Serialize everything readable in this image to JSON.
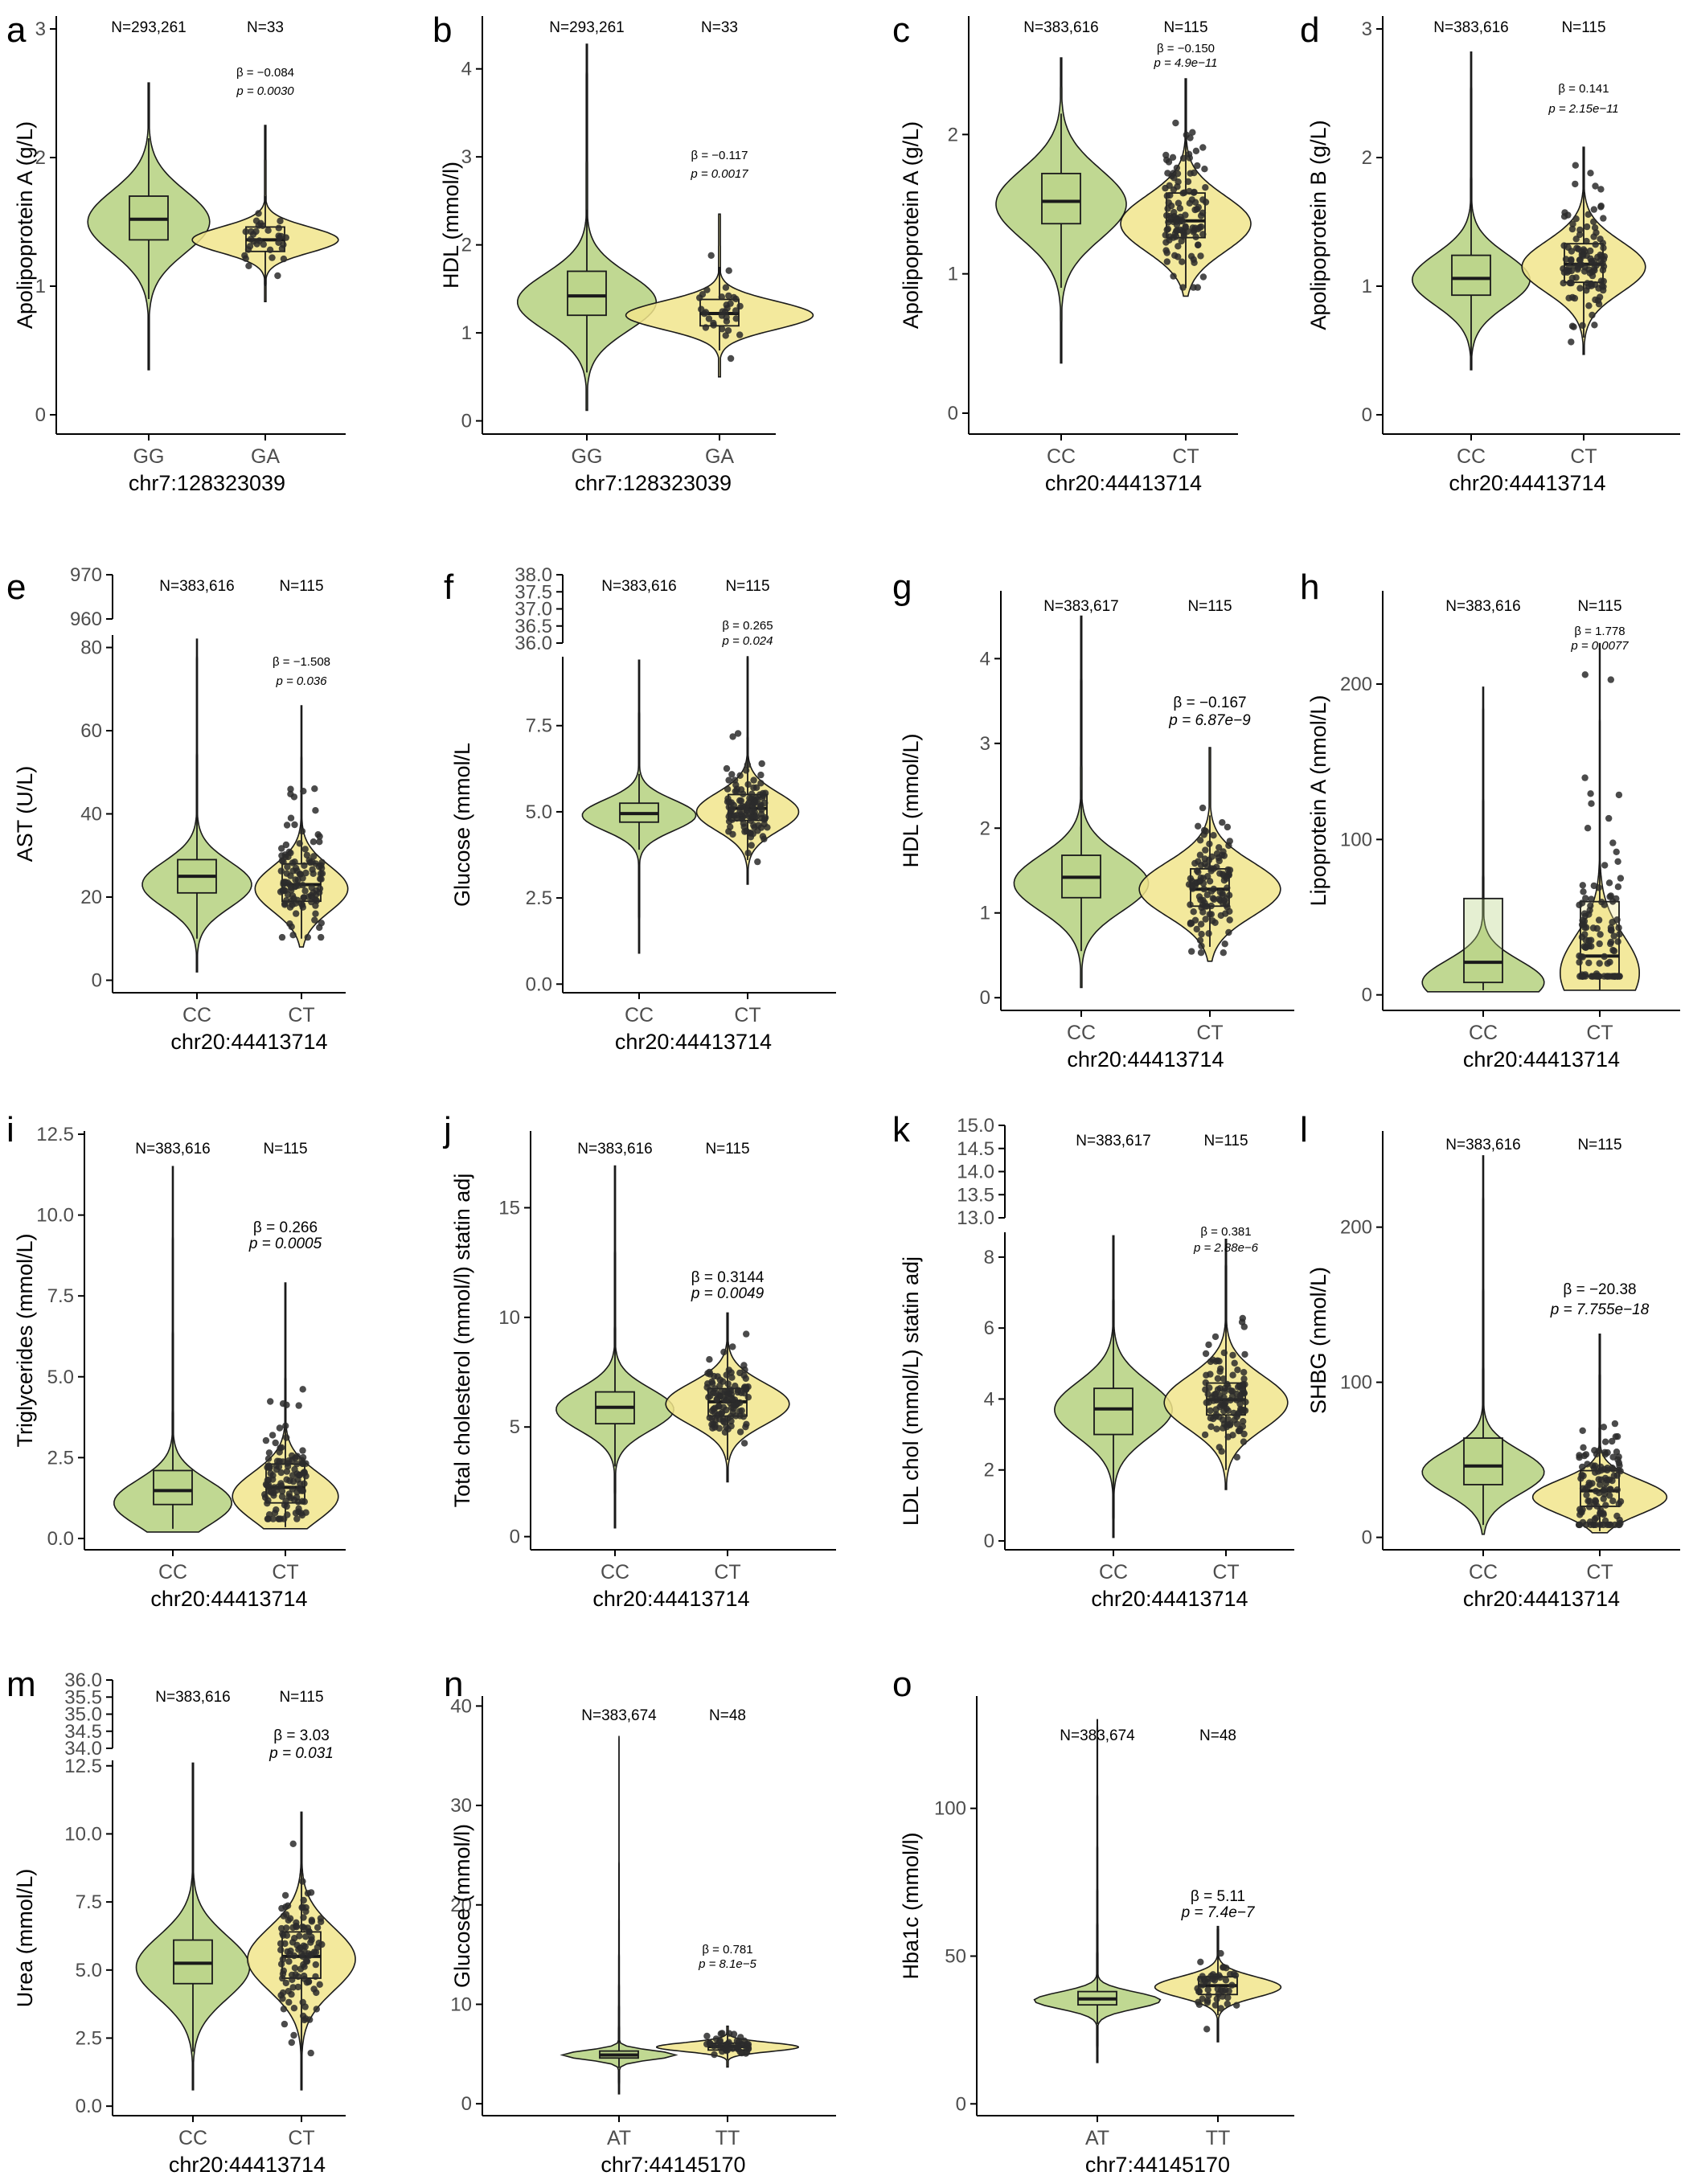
{
  "figure": {
    "colors": {
      "group1": "#b5d17f",
      "group2": "#f1e58c",
      "outline": "#1a1a1a",
      "point": "#2b2b2b",
      "axis": "#000000"
    },
    "violin_fill_opacity": 0.85
  },
  "chart_data": [
    {
      "id": "a",
      "letter": "a",
      "type": "violin",
      "ylabel": "Apolipoprotein A (g/L)",
      "xlabel": "chr7:128323039",
      "ylim": [
        -0.15,
        3.1
      ],
      "yticks": [
        0,
        1,
        2,
        3
      ],
      "ytick_labels": [
        "0",
        "1",
        "2",
        "3"
      ],
      "groups": [
        {
          "name": "GG",
          "n_label": "N=293,261",
          "min": 0.35,
          "max": 2.58,
          "median": 1.52,
          "q1": 1.36,
          "q3": 1.7,
          "whisker_low": 0.9,
          "whisker_high": 2.15,
          "mode": 1.5,
          "spread": 0.24,
          "width": 1.0,
          "points": 0
        },
        {
          "name": "GA",
          "n_label": "N=33",
          "min": 0.88,
          "max": 2.25,
          "median": 1.36,
          "q1": 1.27,
          "q3": 1.46,
          "whisker_low": 1.0,
          "whisker_high": 1.7,
          "mode": 1.36,
          "spread": 0.1,
          "width": 1.2,
          "points": 33
        }
      ],
      "stat": {
        "beta": "β = −0.084",
        "p": "p = 0.0030",
        "size": "small"
      }
    },
    {
      "id": "b",
      "letter": "b",
      "type": "violin",
      "ylabel": "HDL (mmol/l)",
      "xlabel": "chr7:128323039",
      "ylim": [
        -0.15,
        4.6
      ],
      "yticks": [
        0,
        1,
        2,
        3,
        4
      ],
      "ytick_labels": [
        "0",
        "1",
        "2",
        "3",
        "4"
      ],
      "groups": [
        {
          "name": "GG",
          "n_label": "N=293,261",
          "min": 0.12,
          "max": 4.28,
          "median": 1.42,
          "q1": 1.2,
          "q3": 1.7,
          "whisker_low": 0.55,
          "whisker_high": 2.4,
          "mode": 1.35,
          "spread": 0.32,
          "width": 1.0,
          "points": 0
        },
        {
          "name": "GA",
          "n_label": "N=33",
          "min": 0.5,
          "max": 2.35,
          "median": 1.22,
          "q1": 1.08,
          "q3": 1.38,
          "whisker_low": 0.8,
          "whisker_high": 1.75,
          "mode": 1.2,
          "spread": 0.16,
          "width": 1.35,
          "points": 33
        }
      ],
      "stat": {
        "beta": "β = −0.117",
        "p": "p = 0.0017",
        "size": "small"
      }
    },
    {
      "id": "c",
      "letter": "c",
      "type": "violin",
      "ylabel": "Apolipoprotein A (g/L)",
      "xlabel": "chr20:44413714",
      "ylim": [
        -0.15,
        2.85
      ],
      "yticks": [
        0,
        1,
        2
      ],
      "ytick_labels": [
        "0",
        "1",
        "2"
      ],
      "groups": [
        {
          "name": "CC",
          "n_label": "N=383,616",
          "min": 0.36,
          "max": 2.55,
          "median": 1.52,
          "q1": 1.36,
          "q3": 1.72,
          "whisker_low": 0.9,
          "whisker_high": 2.15,
          "mode": 1.5,
          "spread": 0.25,
          "width": 1.0,
          "points": 0
        },
        {
          "name": "CT",
          "n_label": "N=115",
          "min": 0.84,
          "max": 2.4,
          "median": 1.38,
          "q1": 1.26,
          "q3": 1.58,
          "whisker_low": 0.9,
          "whisker_high": 2.05,
          "mode": 1.36,
          "spread": 0.2,
          "width": 1.0,
          "points": 115
        }
      ],
      "stat": {
        "beta": "β = −0.150",
        "p": "p = 4.9e−11",
        "size": "small"
      }
    },
    {
      "id": "d",
      "letter": "d",
      "type": "violin",
      "ylabel": "Apolipoprotein B (g/L)",
      "xlabel": "chr20:44413714",
      "ylim": [
        -0.15,
        3.1
      ],
      "yticks": [
        0,
        1,
        2,
        3
      ],
      "ytick_labels": [
        "0",
        "1",
        "2",
        "3"
      ],
      "groups": [
        {
          "name": "CC",
          "n_label": "N=383,616",
          "min": 0.35,
          "max": 2.82,
          "median": 1.06,
          "q1": 0.93,
          "q3": 1.24,
          "whisker_low": 0.45,
          "whisker_high": 1.7,
          "mode": 1.05,
          "spread": 0.2,
          "width": 1.0,
          "points": 0
        },
        {
          "name": "CT",
          "n_label": "N=115",
          "min": 0.47,
          "max": 2.08,
          "median": 1.17,
          "q1": 1.03,
          "q3": 1.33,
          "whisker_low": 0.6,
          "whisker_high": 1.85,
          "mode": 1.15,
          "spread": 0.2,
          "width": 1.05,
          "points": 115
        }
      ],
      "stat": {
        "beta": "β = 0.141",
        "p": "p = 2.15e−11",
        "size": "small"
      }
    },
    {
      "id": "e",
      "letter": "e",
      "type": "violin",
      "ylabel": "AST (U/L)",
      "xlabel": "chr20:44413714",
      "ylim": [
        -3,
        83
      ],
      "yticks": [
        0,
        20,
        40,
        60,
        80
      ],
      "ytick_labels": [
        "0",
        "20",
        "40",
        "60",
        "80"
      ],
      "broken_axis": {
        "tick_labels": [
          "970",
          "960"
        ]
      },
      "groups": [
        {
          "name": "CC",
          "n_label": "N=383,616",
          "min": 2,
          "max": 82,
          "median": 25,
          "q1": 21,
          "q3": 29,
          "whisker_low": 10,
          "whisker_high": 40,
          "mode": 23,
          "spread": 5.5,
          "width": 1.0,
          "points": 0
        },
        {
          "name": "CT",
          "n_label": "N=115",
          "min": 8,
          "max": 66,
          "median": 23,
          "q1": 19,
          "q3": 28,
          "whisker_low": 10,
          "whisker_high": 44,
          "mode": 22,
          "spread": 5.5,
          "width": 0.85,
          "points": 115
        }
      ],
      "stat": {
        "beta": "β = −1.508",
        "p": "p = 0.036",
        "size": "small"
      }
    },
    {
      "id": "f",
      "letter": "f",
      "type": "violin",
      "ylabel": "Glucose (mmol/L",
      "xlabel": "chr20:44413714",
      "ylim": [
        -0.25,
        9.5
      ],
      "yticks": [
        0,
        2.5,
        5,
        7.5
      ],
      "ytick_labels": [
        "0.0",
        "2.5",
        "5.0",
        "7.5"
      ],
      "broken_axis": {
        "tick_labels": [
          "38.0",
          "37.5",
          "37.0",
          "36.5",
          "36.0"
        ]
      },
      "groups": [
        {
          "name": "CC",
          "n_label": "N=383,616",
          "min": 0.9,
          "max": 9.4,
          "median": 4.95,
          "q1": 4.7,
          "q3": 5.25,
          "whisker_low": 3.9,
          "whisker_high": 6.1,
          "mode": 4.9,
          "spread": 0.45,
          "width": 1.0,
          "points": 0
        },
        {
          "name": "CT",
          "n_label": "N=115",
          "min": 2.9,
          "max": 9.5,
          "median": 5.1,
          "q1": 4.75,
          "q3": 5.5,
          "whisker_low": 3.6,
          "whisker_high": 7.3,
          "mode": 5.0,
          "spread": 0.55,
          "width": 0.9,
          "points": 115
        }
      ],
      "stat": {
        "beta": "β = 0.265",
        "p": "p = 0.024",
        "size": "small"
      }
    },
    {
      "id": "g",
      "letter": "g",
      "type": "violin",
      "ylabel": "HDL (mmol/L)",
      "xlabel": "chr20:44413714",
      "ylim": [
        -0.15,
        4.8
      ],
      "yticks": [
        0,
        1,
        2,
        3,
        4
      ],
      "ytick_labels": [
        "0",
        "1",
        "2",
        "3",
        "4"
      ],
      "groups": [
        {
          "name": "CC",
          "n_label": "N=383,617",
          "min": 0.12,
          "max": 4.5,
          "median": 1.42,
          "q1": 1.18,
          "q3": 1.68,
          "whisker_low": 0.55,
          "whisker_high": 2.45,
          "mode": 1.35,
          "spread": 0.33,
          "width": 1.0,
          "points": 0
        },
        {
          "name": "CT",
          "n_label": "N=115",
          "min": 0.43,
          "max": 2.95,
          "median": 1.28,
          "q1": 1.08,
          "q3": 1.52,
          "whisker_low": 0.6,
          "whisker_high": 2.15,
          "mode": 1.28,
          "spread": 0.32,
          "width": 1.05,
          "points": 115
        }
      ],
      "stat": {
        "beta": "β = −0.167",
        "p": "p = 6.87e−9",
        "size": "large"
      }
    },
    {
      "id": "h",
      "letter": "h",
      "type": "violin",
      "ylabel": "Lipoprotein A (nmol/L)",
      "xlabel": "chr20:44413714",
      "ylim": [
        -10,
        260
      ],
      "yticks": [
        0,
        100,
        200
      ],
      "ytick_labels": [
        "0",
        "100",
        "200"
      ],
      "groups": [
        {
          "name": "CC",
          "n_label": "N=383,616",
          "min": 2,
          "max": 198,
          "median": 21,
          "q1": 8,
          "q3": 62,
          "whisker_low": 3,
          "whisker_high": 140,
          "mode": 8,
          "spread": 14,
          "width": 1.0,
          "points": 0
        },
        {
          "name": "CT",
          "n_label": "N=115",
          "min": 3,
          "max": 226,
          "median": 25,
          "q1": 12,
          "q3": 60,
          "whisker_low": 3,
          "whisker_high": 200,
          "mode": 14,
          "spread": 24,
          "width": 0.65,
          "points": 115
        }
      ],
      "stat": {
        "beta": "β = 1.778",
        "p": "p = 0.0077",
        "size": "small"
      }
    },
    {
      "id": "i",
      "letter": "i",
      "type": "violin",
      "ylabel": "Triglycerides (mmol/L)",
      "xlabel": "chr20:44413714",
      "ylim": [
        -0.35,
        12.6
      ],
      "yticks": [
        0,
        2.5,
        5,
        7.5,
        10,
        12.5
      ],
      "ytick_labels": [
        "0.0",
        "2.5",
        "5.0",
        "7.5",
        "10.0",
        "12.5"
      ],
      "groups": [
        {
          "name": "CC",
          "n_label": "N=383,616",
          "min": 0.2,
          "max": 11.5,
          "median": 1.48,
          "q1": 1.05,
          "q3": 2.1,
          "whisker_low": 0.3,
          "whisker_high": 3.7,
          "mode": 1.1,
          "spread": 0.7,
          "width": 1.0,
          "points": 0
        },
        {
          "name": "CT",
          "n_label": "N=115",
          "min": 0.3,
          "max": 7.9,
          "median": 1.58,
          "q1": 1.1,
          "q3": 2.3,
          "whisker_low": 0.35,
          "whisker_high": 4.6,
          "mode": 1.3,
          "spread": 0.75,
          "width": 0.9,
          "points": 115
        }
      ],
      "stat": {
        "beta": "β = 0.266",
        "p": "p = 0.0005",
        "size": "large"
      }
    },
    {
      "id": "j",
      "letter": "j",
      "type": "violin",
      "ylabel": "Total cholesterol (mmol/l) statin adj",
      "xlabel": "chr20:44413714",
      "ylim": [
        -0.6,
        18.5
      ],
      "yticks": [
        0,
        5,
        10,
        15
      ],
      "ytick_labels": [
        "0",
        "5",
        "10",
        "15"
      ],
      "groups": [
        {
          "name": "CC",
          "n_label": "N=383,616",
          "min": 0.4,
          "max": 16.9,
          "median": 5.9,
          "q1": 5.15,
          "q3": 6.6,
          "whisker_low": 3.2,
          "whisker_high": 8.8,
          "mode": 5.8,
          "spread": 0.95,
          "width": 1.0,
          "points": 0
        },
        {
          "name": "CT",
          "n_label": "N=115",
          "min": 2.5,
          "max": 10.2,
          "median": 6.15,
          "q1": 5.5,
          "q3": 6.75,
          "whisker_low": 3.5,
          "whisker_high": 8.9,
          "mode": 6.05,
          "spread": 0.95,
          "width": 1.05,
          "points": 115
        }
      ],
      "stat": {
        "beta": "β = 0.3144",
        "p": "p = 0.0049",
        "size": "large"
      }
    },
    {
      "id": "k",
      "letter": "k",
      "type": "violin",
      "ylabel": "LDL chol (mmol/L) statin adj",
      "xlabel": "chr20:44413714",
      "ylim": [
        -0.25,
        8.7
      ],
      "yticks": [
        0,
        2,
        4,
        6,
        8
      ],
      "ytick_labels": [
        "0",
        "2",
        "4",
        "6",
        "8"
      ],
      "broken_axis": {
        "tick_labels": [
          "15.0",
          "14.5",
          "14.0",
          "13.5",
          "13.0"
        ]
      },
      "groups": [
        {
          "name": "CC",
          "n_label": "N=383,617",
          "min": 0.1,
          "max": 8.6,
          "median": 3.72,
          "q1": 3.0,
          "q3": 4.3,
          "whisker_low": 1.2,
          "whisker_high": 6.2,
          "mode": 3.7,
          "spread": 0.78,
          "width": 1.0,
          "points": 0
        },
        {
          "name": "CT",
          "n_label": "N=115",
          "min": 1.45,
          "max": 8.5,
          "median": 3.98,
          "q1": 3.55,
          "q3": 4.45,
          "whisker_low": 2.0,
          "whisker_high": 6.3,
          "mode": 3.9,
          "spread": 0.75,
          "width": 1.05,
          "points": 115
        }
      ],
      "stat": {
        "beta": "β = 0.381",
        "p": "p = 2.88e−6",
        "size": "small"
      }
    },
    {
      "id": "l",
      "letter": "l",
      "type": "violin",
      "ylabel": "SHBG (nmol/L)",
      "xlabel": "chr20:44413714",
      "ylim": [
        -8,
        262
      ],
      "yticks": [
        0,
        100,
        200
      ],
      "ytick_labels": [
        "0",
        "100",
        "200"
      ],
      "groups": [
        {
          "name": "CC",
          "n_label": "N=383,616",
          "min": 2,
          "max": 246,
          "median": 46,
          "q1": 34,
          "q3": 64,
          "whisker_low": 8,
          "whisker_high": 112,
          "mode": 42,
          "spread": 14,
          "width": 1.0,
          "points": 0
        },
        {
          "name": "CT",
          "n_label": "N=115",
          "min": 3,
          "max": 131,
          "median": 30,
          "q1": 20,
          "q3": 43,
          "whisker_low": 4,
          "whisker_high": 75,
          "mode": 26,
          "spread": 11,
          "width": 1.1,
          "points": 115
        }
      ],
      "stat": {
        "beta": "β = −20.38",
        "p": "p = 7.755e−18",
        "size": "large"
      }
    },
    {
      "id": "m",
      "letter": "m",
      "type": "violin",
      "ylabel": "Urea (mmol/L)",
      "xlabel": "chr20:44413714",
      "ylim": [
        -0.35,
        12.7
      ],
      "yticks": [
        0,
        2.5,
        5,
        7.5,
        10,
        12.5
      ],
      "ytick_labels": [
        "0.0",
        "2.5",
        "5.0",
        "7.5",
        "10.0",
        "12.5"
      ],
      "broken_axis": {
        "tick_labels": [
          "36.0",
          "35.5",
          "35.0",
          "34.5",
          "34.0"
        ]
      },
      "groups": [
        {
          "name": "CC",
          "n_label": "N=383,616",
          "min": 0.6,
          "max": 12.6,
          "median": 5.25,
          "q1": 4.5,
          "q3": 6.1,
          "whisker_low": 2.0,
          "whisker_high": 8.6,
          "mode": 5.1,
          "spread": 1.15,
          "width": 1.0,
          "points": 0
        },
        {
          "name": "CT",
          "n_label": "N=115",
          "min": 0.6,
          "max": 10.8,
          "median": 5.5,
          "q1": 4.7,
          "q3": 6.4,
          "whisker_low": 2.0,
          "whisker_high": 9.4,
          "mode": 5.4,
          "spread": 1.15,
          "width": 0.95,
          "points": 115
        }
      ],
      "stat": {
        "beta": "β = 3.03",
        "p": "p = 0.031",
        "size": "large"
      }
    },
    {
      "id": "n",
      "letter": "n",
      "type": "violin",
      "ylabel": "Glucose (mmol/l)",
      "xlabel": "chr7:44145170",
      "ylim": [
        -1.2,
        41
      ],
      "yticks": [
        0,
        10,
        20,
        30,
        40
      ],
      "ytick_labels": [
        "0",
        "10",
        "20",
        "30",
        "40"
      ],
      "groups": [
        {
          "name": "AT",
          "n_label": "N=383,674",
          "min": 1,
          "max": 37,
          "median": 4.9,
          "q1": 4.6,
          "q3": 5.3,
          "whisker_low": 3.6,
          "whisker_high": 6.4,
          "mode": 4.9,
          "spread": 0.45,
          "width": 1.0,
          "points": 0
        },
        {
          "name": "TT",
          "n_label": "N=48",
          "min": 3.7,
          "max": 7.8,
          "median": 5.75,
          "q1": 5.4,
          "q3": 6.1,
          "whisker_low": 4.4,
          "whisker_high": 7.2,
          "mode": 5.7,
          "spread": 0.45,
          "width": 1.25,
          "points": 48
        }
      ],
      "stat": {
        "beta": "β = 0.781",
        "p": "p = 8.1e−5",
        "size": "small"
      }
    },
    {
      "id": "o",
      "letter": "o",
      "type": "violin",
      "ylabel": "Hba1c (mmol/l)",
      "xlabel": "chr7:44145170",
      "ylim": [
        -4,
        138
      ],
      "yticks": [
        0,
        50,
        100
      ],
      "ytick_labels": [
        "0",
        "50",
        "100"
      ],
      "groups": [
        {
          "name": "AT",
          "n_label": "N=383,674",
          "min": 14,
          "max": 130,
          "median": 35.5,
          "q1": 33.5,
          "q3": 38,
          "whisker_low": 27,
          "whisker_high": 44,
          "mode": 35,
          "spread": 2.8,
          "width": 1.0,
          "points": 0
        },
        {
          "name": "TT",
          "n_label": "N=48",
          "min": 21,
          "max": 60,
          "median": 40,
          "q1": 37,
          "q3": 43,
          "whisker_low": 30,
          "whisker_high": 52,
          "mode": 39.5,
          "spread": 3.5,
          "width": 1.0,
          "points": 48
        }
      ],
      "stat": {
        "beta": "β = 5.11",
        "p": "p = 7.4e−7",
        "size": "large"
      }
    }
  ]
}
